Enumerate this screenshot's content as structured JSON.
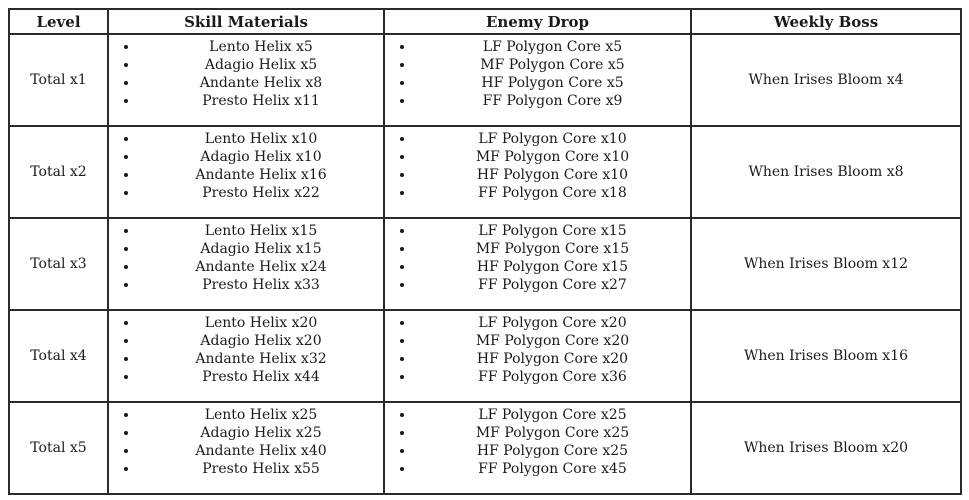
{
  "table": {
    "headers": [
      "Level",
      "Skill Materials",
      "Enemy Drop",
      "Weekly Boss"
    ],
    "rows": [
      {
        "level": "Total x1",
        "skill_materials": [
          "Lento Helix x5",
          "Adagio Helix x5",
          "Andante Helix x8",
          "Presto Helix x11"
        ],
        "enemy_drop": [
          "LF Polygon Core x5",
          "MF Polygon Core x5",
          "HF Polygon Core x5",
          "FF Polygon Core x9"
        ],
        "weekly_boss": "When Irises Bloom x4"
      },
      {
        "level": "Total x2",
        "skill_materials": [
          "Lento Helix x10",
          "Adagio Helix x10",
          "Andante Helix x16",
          "Presto Helix x22"
        ],
        "enemy_drop": [
          "LF Polygon Core x10",
          "MF Polygon Core x10",
          "HF Polygon Core x10",
          "FF Polygon Core x18"
        ],
        "weekly_boss": "When Irises Bloom x8"
      },
      {
        "level": "Total x3",
        "skill_materials": [
          "Lento Helix x15",
          "Adagio Helix x15",
          "Andante Helix x24",
          "Presto Helix x33"
        ],
        "enemy_drop": [
          "LF Polygon Core x15",
          "MF Polygon Core x15",
          "HF Polygon Core x15",
          "FF Polygon Core x27"
        ],
        "weekly_boss": "When Irises Bloom x12"
      },
      {
        "level": "Total x4",
        "skill_materials": [
          "Lento Helix x20",
          "Adagio Helix x20",
          "Andante Helix x32",
          "Presto Helix x44"
        ],
        "enemy_drop": [
          "LF Polygon Core x20",
          "MF Polygon Core x20",
          "HF Polygon Core x20",
          "FF Polygon Core x36"
        ],
        "weekly_boss": "When Irises Bloom x16"
      },
      {
        "level": "Total x5",
        "skill_materials": [
          "Lento Helix x25",
          "Adagio Helix x25",
          "Andante Helix x40",
          "Presto Helix x55"
        ],
        "enemy_drop": [
          "LF Polygon Core x25",
          "MF Polygon Core x25",
          "HF Polygon Core x25",
          "FF Polygon Core x45"
        ],
        "weekly_boss": "When Irises Bloom x20"
      }
    ]
  }
}
